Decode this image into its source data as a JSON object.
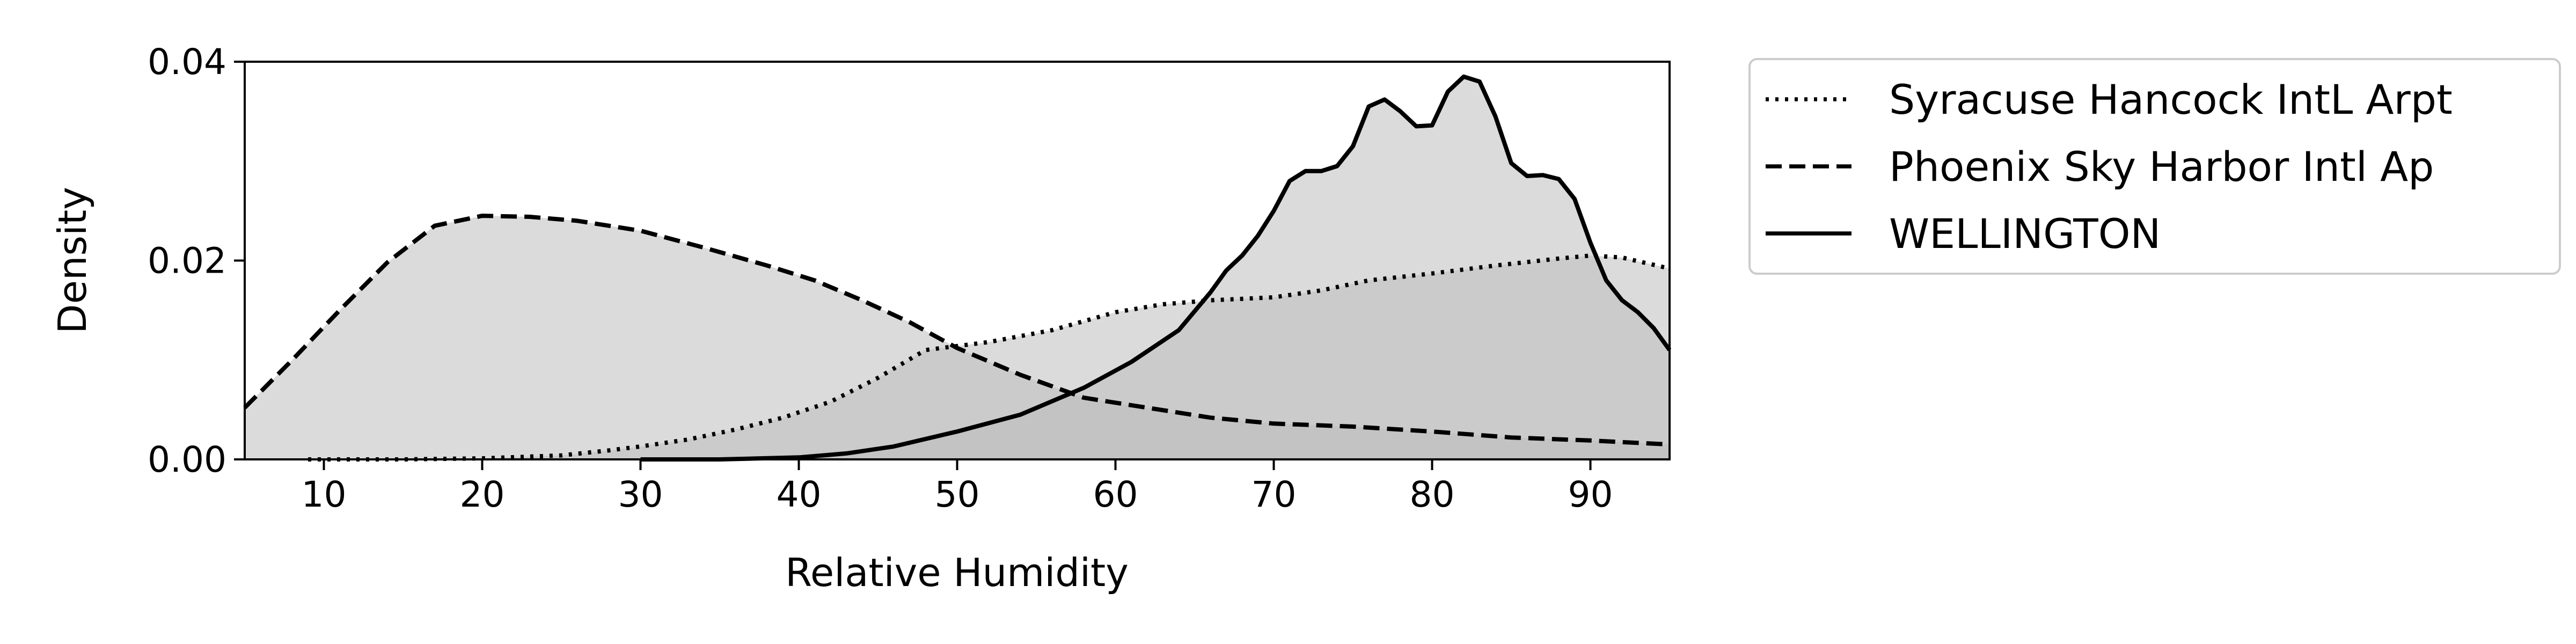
{
  "chart_data": {
    "type": "area",
    "title": "",
    "xlabel": "Relative Humidity",
    "ylabel": "Density",
    "xlim": [
      5,
      95
    ],
    "ylim": [
      0,
      0.04
    ],
    "xticks": [
      10,
      20,
      30,
      40,
      50,
      60,
      70,
      80,
      90
    ],
    "xtick_labels": [
      "10",
      "20",
      "30",
      "40",
      "50",
      "60",
      "70",
      "80",
      "90"
    ],
    "yticks": [
      0,
      0.02,
      0.04
    ],
    "ytick_labels": [
      "0.00",
      "0.02",
      "0.04"
    ],
    "grid": false,
    "legend_position": "outside-right-top",
    "series": [
      {
        "name": "Syracuse Hancock IntL Arpt",
        "line_style": "dotted",
        "fill_color": "#bebebe",
        "x": [
          9,
          15,
          20,
          25,
          28,
          30,
          33,
          36,
          39,
          42,
          45,
          48,
          52,
          56,
          60,
          63,
          66,
          70,
          73,
          76,
          80,
          84,
          88,
          90,
          92,
          95
        ],
        "y": [
          0,
          0,
          0.0001,
          0.0004,
          0.0009,
          0.0013,
          0.002,
          0.003,
          0.0042,
          0.0058,
          0.0082,
          0.011,
          0.0118,
          0.013,
          0.0148,
          0.0156,
          0.016,
          0.0163,
          0.017,
          0.018,
          0.0187,
          0.0195,
          0.0202,
          0.0205,
          0.0203,
          0.0192
        ]
      },
      {
        "name": "Phoenix Sky Harbor Intl Ap",
        "line_style": "dashed",
        "fill_color": "#bebebe",
        "x": [
          5,
          8,
          11,
          14,
          17,
          20,
          23,
          26,
          30,
          34,
          38,
          41,
          44,
          47,
          50,
          54,
          58,
          62,
          66,
          70,
          75,
          80,
          85,
          90,
          95
        ],
        "y": [
          0.0052,
          0.01,
          0.015,
          0.0198,
          0.0235,
          0.0245,
          0.0244,
          0.024,
          0.023,
          0.0213,
          0.0195,
          0.018,
          0.016,
          0.0138,
          0.0112,
          0.0085,
          0.0062,
          0.0052,
          0.0042,
          0.0036,
          0.0033,
          0.0028,
          0.0022,
          0.0019,
          0.0015
        ]
      },
      {
        "name": "WELLINGTON",
        "line_style": "solid",
        "fill_color": "#bebebe",
        "x": [
          30,
          35,
          40,
          43,
          46,
          50,
          54,
          58,
          61,
          64,
          66,
          67,
          68,
          69,
          70,
          71,
          72,
          73,
          74,
          75,
          76,
          77,
          78,
          79,
          80,
          81,
          82,
          83,
          84,
          85,
          86,
          87,
          88,
          89,
          90,
          91,
          92,
          93,
          94,
          95
        ],
        "y": [
          0,
          0,
          0.0002,
          0.0006,
          0.0013,
          0.0028,
          0.0045,
          0.0072,
          0.0098,
          0.013,
          0.0168,
          0.019,
          0.0205,
          0.0225,
          0.025,
          0.028,
          0.029,
          0.029,
          0.0295,
          0.0315,
          0.0355,
          0.0362,
          0.035,
          0.0335,
          0.0336,
          0.037,
          0.0385,
          0.038,
          0.0345,
          0.0298,
          0.0285,
          0.0286,
          0.0282,
          0.0262,
          0.0218,
          0.018,
          0.016,
          0.0148,
          0.0132,
          0.011
        ]
      }
    ]
  }
}
